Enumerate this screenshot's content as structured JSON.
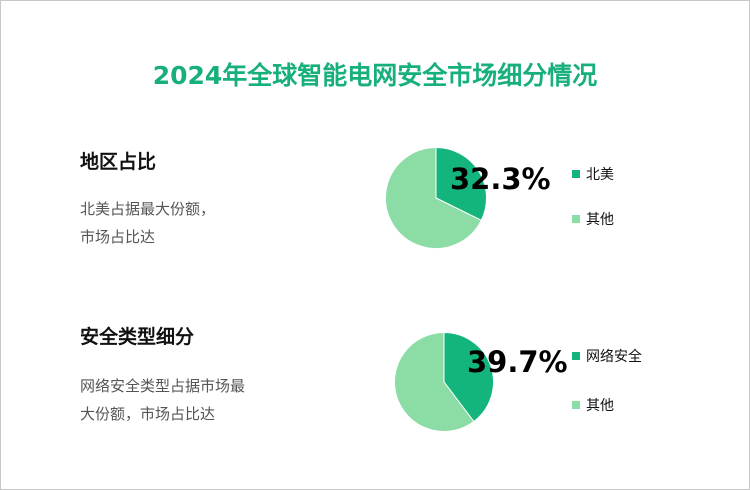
{
  "title": "2024年全球智能电网安全市场细分情况",
  "colors": {
    "title": "#18b07a",
    "dark_green": "#13b57c",
    "light_green": "#8cdca6"
  },
  "sections": [
    {
      "heading": "地区占比",
      "desc_lines": [
        "北美占据最大份额，",
        "市场占比达"
      ]
    },
    {
      "heading": "安全类型细分",
      "desc_lines": [
        "网络安全类型占据市场最",
        "大份额，市场占比达"
      ]
    }
  ],
  "chart_data": [
    {
      "type": "pie",
      "title": "地区占比",
      "labels": [
        "北美",
        "其他"
      ],
      "values": [
        32.3,
        67.7
      ],
      "data_label": "32.3%",
      "colors": [
        "#13b57c",
        "#8cdca6"
      ]
    },
    {
      "type": "pie",
      "title": "安全类型细分",
      "labels": [
        "网络安全",
        "其他"
      ],
      "values": [
        39.7,
        60.3
      ],
      "data_label": "39.7%",
      "colors": [
        "#13b57c",
        "#8cdca6"
      ]
    }
  ]
}
